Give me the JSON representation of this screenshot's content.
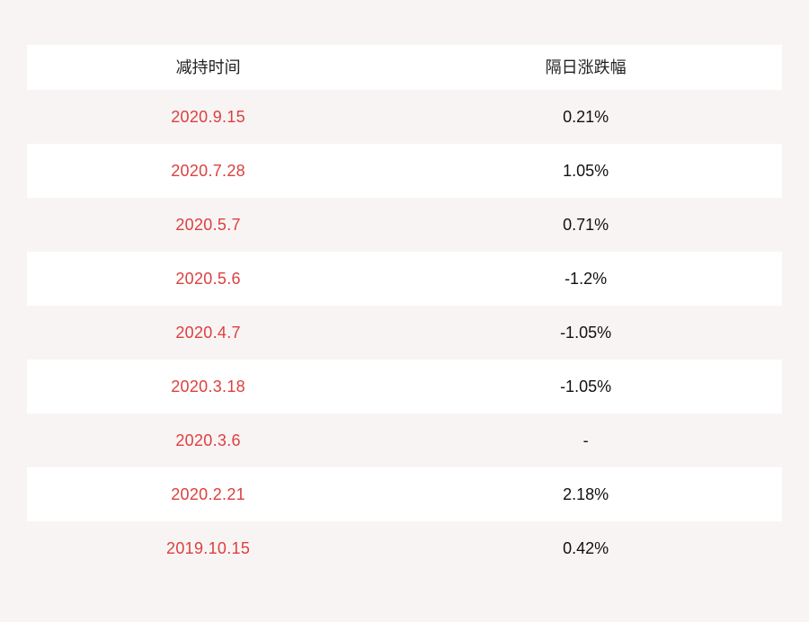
{
  "table": {
    "headers": {
      "date": "减持时间",
      "change": "隔日涨跌幅"
    },
    "rows": [
      {
        "date": "2020.9.15",
        "change": "0.21%"
      },
      {
        "date": "2020.7.28",
        "change": "1.05%"
      },
      {
        "date": "2020.5.7",
        "change": "0.71%"
      },
      {
        "date": "2020.5.6",
        "change": "-1.2%"
      },
      {
        "date": "2020.4.7",
        "change": "-1.05%"
      },
      {
        "date": "2020.3.18",
        "change": "-1.05%"
      },
      {
        "date": "2020.3.6",
        "change": "-"
      },
      {
        "date": "2020.2.21",
        "change": "2.18%"
      },
      {
        "date": "2019.10.15",
        "change": "0.42%"
      }
    ]
  },
  "colors": {
    "page_background": "#f9f4f4",
    "row_white": "#ffffff",
    "date_red": "#dc4040",
    "value_black": "#111111",
    "header_black": "#222222"
  },
  "chart_data": {
    "type": "table",
    "title": "",
    "columns": [
      "减持时间",
      "隔日涨跌幅"
    ],
    "rows": [
      [
        "2020.9.15",
        "0.21%"
      ],
      [
        "2020.7.28",
        "1.05%"
      ],
      [
        "2020.5.7",
        "0.71%"
      ],
      [
        "2020.5.6",
        "-1.2%"
      ],
      [
        "2020.4.7",
        "-1.05%"
      ],
      [
        "2020.3.18",
        "-1.05%"
      ],
      [
        "2020.3.6",
        "-"
      ],
      [
        "2020.2.21",
        "2.18%"
      ],
      [
        "2019.10.15",
        "0.42%"
      ]
    ],
    "change_values_pct": [
      0.21,
      1.05,
      0.71,
      -1.2,
      -1.05,
      -1.05,
      null,
      2.18,
      0.42
    ],
    "layout": "alternating row stripes, header row white, dates in red, values in black, all text centered"
  }
}
